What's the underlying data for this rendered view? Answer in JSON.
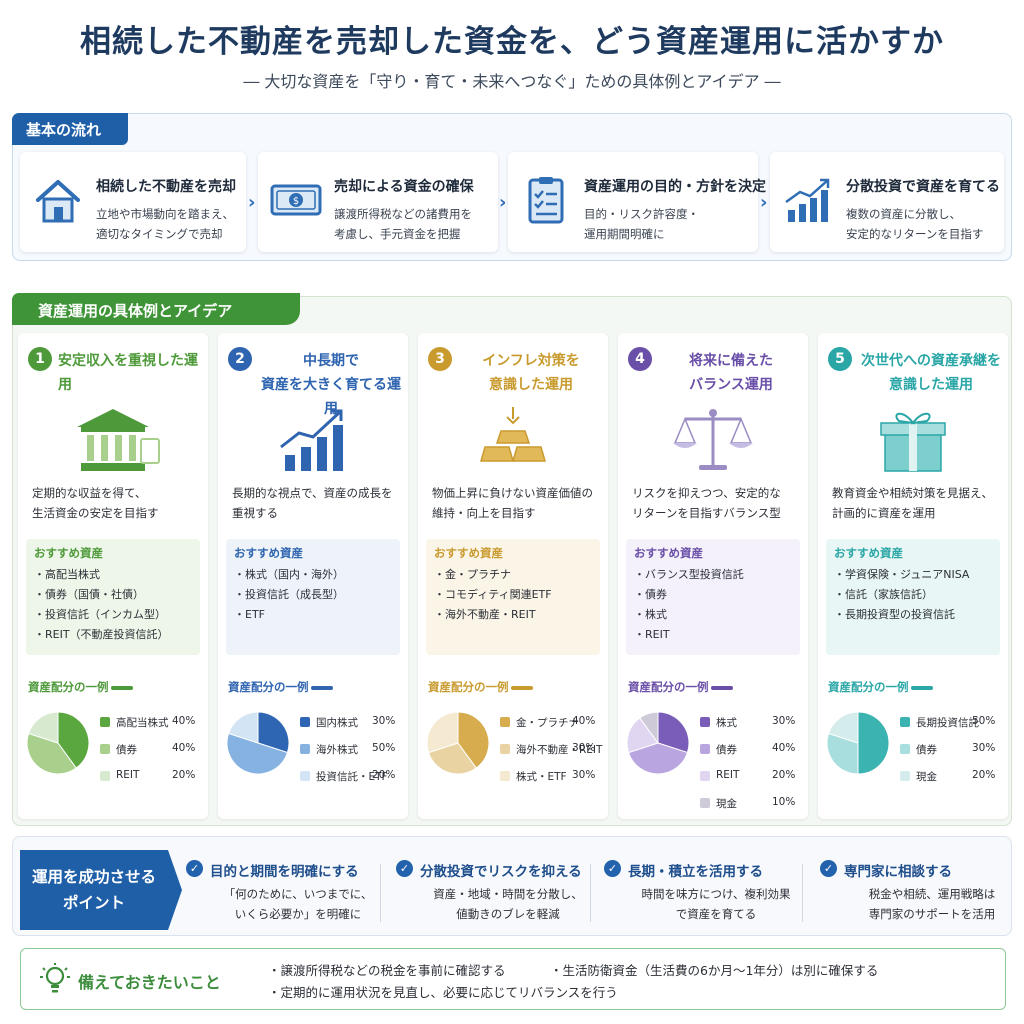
{
  "header": {
    "title": "相続した不動産を売却した資金を、どう資産運用に活かすか",
    "subtitle": "― 大切な資産を「守り・育て・未来へつなぐ」ための具体例とアイデア ―"
  },
  "flow": {
    "heading": "基本の流れ",
    "steps": [
      {
        "icon": "house-icon",
        "title": "相続した不動産を売却",
        "desc": "立地や市場動向を踏まえ、\n適切なタイミングで売却"
      },
      {
        "icon": "money-icon",
        "title": "売却による資金の確保",
        "desc": "譲渡所得税などの諸費用を\n考慮し、手元資金を把握"
      },
      {
        "icon": "checklist-icon",
        "title": "資産運用の目的・方針を決定",
        "desc": "目的・リスク許容度・\n運用期間明確に"
      },
      {
        "icon": "growth-chart-icon",
        "title": "分散投資で資産を育てる",
        "desc": "複数の資産に分散し、\n安定的なリターンを目指す"
      }
    ]
  },
  "ideas": {
    "heading": "資産運用の具体例とアイデア",
    "rec_label": "おすすめ資産",
    "alloc_label": "資産配分の一例",
    "cards": [
      {
        "num": "1",
        "title": "安定収入を重視した運用",
        "color": "#4e9a3a",
        "light": "#eef6ea",
        "icon": "bank-building-icon",
        "desc": "定期的な収益を得て、\n生活資金の安定を目指す",
        "recommended": [
          "・高配当株式",
          "・債券（国債・社債）",
          "・投資信託（インカム型）",
          "・REIT（不動産投資信託）"
        ],
        "allocation": [
          {
            "name": "高配当株式",
            "pct": 40,
            "label": "40%",
            "color": "#5aa63f"
          },
          {
            "name": "債券",
            "pct": 40,
            "label": "40%",
            "color": "#a8d08c"
          },
          {
            "name": "REIT",
            "pct": 20,
            "label": "20%",
            "color": "#d7ead0"
          }
        ]
      },
      {
        "num": "2",
        "title": "中長期で\n資産を大きく育てる運用",
        "color": "#2f64b0",
        "light": "#eef3fa",
        "icon": "bar-chart-up-icon",
        "desc": "長期的な視点で、資産の成長を\n重視する",
        "recommended": [
          "・株式（国内・海外）",
          "・投資信託（成長型）",
          "・ETF"
        ],
        "allocation": [
          {
            "name": "国内株式",
            "pct": 30,
            "label": "30%",
            "color": "#2f66b3"
          },
          {
            "name": "海外株式",
            "pct": 50,
            "label": "50%",
            "color": "#86b2e2"
          },
          {
            "name": "投資信託・ETF",
            "pct": 20,
            "label": "20%",
            "color": "#d3e4f5"
          }
        ]
      },
      {
        "num": "3",
        "title": "インフレ対策を\n意識した運用",
        "color": "#c99a2e",
        "light": "#fbf5e8",
        "icon": "gold-bars-icon",
        "desc": "物価上昇に負けない資産価値の\n維持・向上を目指す",
        "recommended": [
          "・金・プラチナ",
          "・コモディティ関連ETF",
          "・海外不動産・REIT"
        ],
        "allocation": [
          {
            "name": "金・プラチナ",
            "pct": 40,
            "label": "40%",
            "color": "#d6ac4e"
          },
          {
            "name": "海外不動産・REIT",
            "pct": 30,
            "label": "30%",
            "color": "#ead3a2"
          },
          {
            "name": "株式・ETF",
            "pct": 30,
            "label": "30%",
            "color": "#f5e9d2"
          }
        ]
      },
      {
        "num": "4",
        "title": "将来に備えた\nバランス運用",
        "color": "#6a4fa8",
        "light": "#f4f1fa",
        "icon": "balance-scale-icon",
        "desc": "リスクを抑えつつ、安定的な\nリターンを目指すバランス型",
        "recommended": [
          "・バランス型投資信託",
          "・債券",
          "・株式",
          "・REIT"
        ],
        "allocation": [
          {
            "name": "株式",
            "pct": 30,
            "label": "30%",
            "color": "#7a5db8"
          },
          {
            "name": "債券",
            "pct": 40,
            "label": "40%",
            "color": "#b9a6e0"
          },
          {
            "name": "REIT",
            "pct": 20,
            "label": "20%",
            "color": "#e0d6f2"
          },
          {
            "name": "現金",
            "pct": 10,
            "label": "10%",
            "color": "#cfcad8"
          }
        ]
      },
      {
        "num": "5",
        "title": "次世代への資産承継を\n意識した運用",
        "color": "#2aa6a6",
        "light": "#e9f6f6",
        "icon": "gift-box-icon",
        "desc": "教育資金や相続対策を見据え、\n計画的に資産を運用",
        "recommended": [
          "・学資保険・ジュニアNISA",
          "・信託（家族信託）",
          "・長期投資型の投資信託"
        ],
        "allocation": [
          {
            "name": "長期投資信託",
            "pct": 50,
            "label": "50%",
            "color": "#3bb3b0"
          },
          {
            "name": "債券",
            "pct": 30,
            "label": "30%",
            "color": "#a9dede"
          },
          {
            "name": "現金",
            "pct": 20,
            "label": "20%",
            "color": "#d4ecec"
          }
        ]
      }
    ]
  },
  "tips": {
    "heading": "運用を成功させる\nポイント",
    "check": "✓",
    "items": [
      {
        "title": "目的と期間を明確にする",
        "desc": "「何のために、いつまでに、\nいくら必要か」を明確に"
      },
      {
        "title": "分散投資でリスクを抑える",
        "desc": "資産・地域・時間を分散し、\n値動きのブレを軽減"
      },
      {
        "title": "長期・積立を活用する",
        "desc": "時間を味方につけ、複利効果\nで資産を育てる"
      },
      {
        "title": "専門家に相談する",
        "desc": "税金や相続、運用戦略は\n専門家のサポートを活用"
      }
    ]
  },
  "prep": {
    "icon": "lightbulb-icon",
    "title": "備えておきたいこと",
    "items": [
      "・譲渡所得税などの税金を事前に確認する",
      "・生活防衛資金（生活費の6か月〜1年分）は別に確保する",
      "・定期的に運用状況を見直し、必要に応じてリバランスを行う"
    ]
  }
}
